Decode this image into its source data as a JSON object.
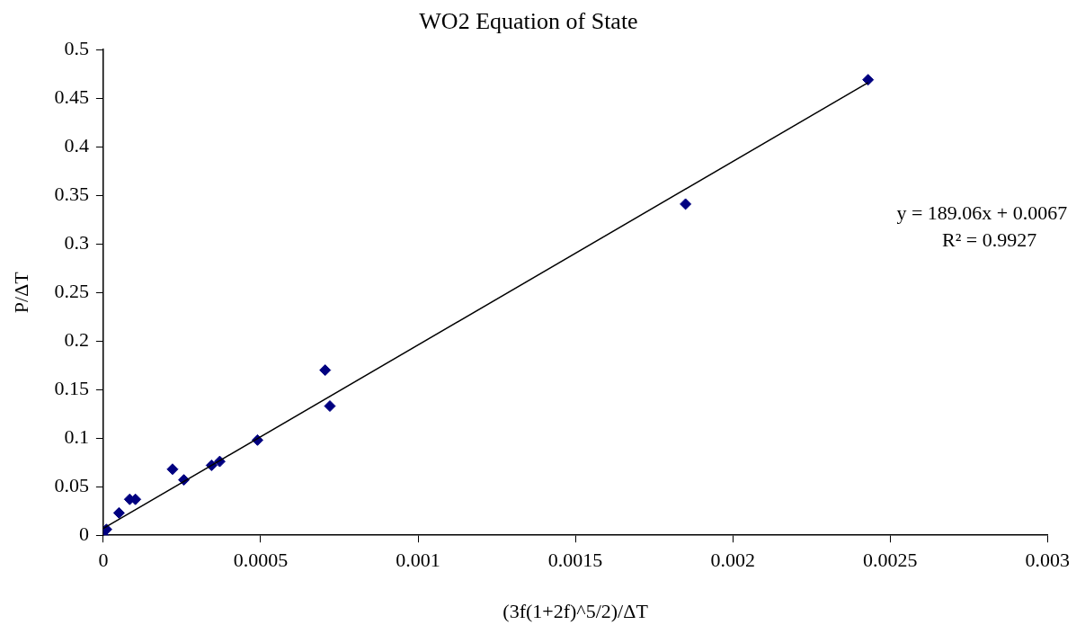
{
  "chart_data": {
    "type": "scatter",
    "title": "WO2 Equation of State",
    "xlabel": "(3f(1+2f)^5/2)/ΔT",
    "ylabel": "P/ΔT",
    "x": [
      0,
      5e-06,
      1e-05,
      5e-05,
      8.4e-05,
      0.000102,
      0.00022,
      0.000256,
      0.000344,
      0.00037,
      0.00049,
      0.000705,
      0.00072,
      0.00185,
      0.00243
    ],
    "series": [
      {
        "color": "#000080",
        "marker": "diamond",
        "values": [
          0,
          null,
          0.006,
          0.023,
          0.037,
          0.037,
          0.068,
          0.057,
          0.072,
          0.076,
          0.098,
          0.17,
          0.133,
          0.341,
          0.469
        ]
      },
      {
        "type": "line",
        "color": "#000000",
        "marker": "none",
        "x": [
          0,
          0.00243
        ],
        "values": [
          0.007,
          0.466
        ]
      }
    ],
    "xlim": [
      0,
      0.003
    ],
    "xticks": [
      0,
      0.0005,
      0.001,
      0.0015,
      0.002,
      0.0025,
      0.003
    ],
    "ylim": [
      0,
      0.5
    ],
    "yticks": [
      0,
      0.05,
      0.1,
      0.15,
      0.2,
      0.25,
      0.3,
      0.35,
      0.4,
      0.45,
      0.5
    ],
    "grid": false,
    "legend": false,
    "annotations": [
      "y = 189.06x + 0.0067",
      "R² = 0.9927"
    ]
  }
}
